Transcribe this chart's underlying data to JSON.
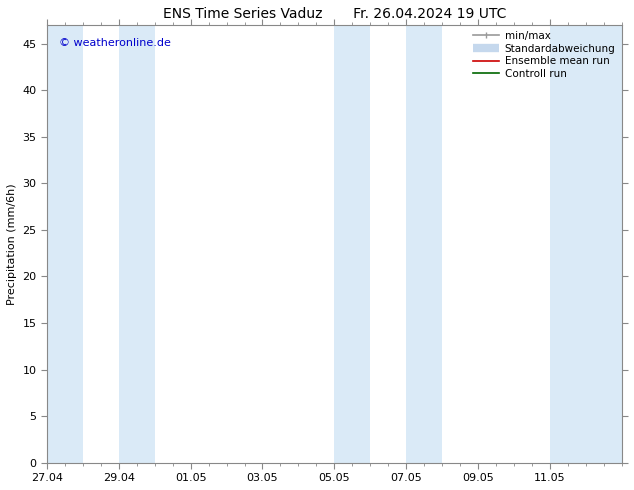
{
  "title": "ENS Time Series Vaduz       Fr. 26.04.2024 19 UTC",
  "ylabel": "Precipitation (mm/6h)",
  "watermark": "© weatheronline.de",
  "watermark_color": "#0000cc",
  "ylim": [
    0,
    47
  ],
  "yticks": [
    0,
    5,
    10,
    15,
    20,
    25,
    30,
    35,
    40,
    45
  ],
  "xtick_labels": [
    "27.04",
    "29.04",
    "01.05",
    "03.05",
    "05.05",
    "07.05",
    "09.05",
    "11.05"
  ],
  "xtick_positions": [
    0,
    2,
    4,
    6,
    8,
    10,
    12,
    14
  ],
  "xlim": [
    0,
    16
  ],
  "background_color": "#ffffff",
  "plot_bg_color": "#ffffff",
  "shaded_regions": [
    [
      0.0,
      1.0
    ],
    [
      2.0,
      3.0
    ],
    [
      8.0,
      9.0
    ],
    [
      10.0,
      11.0
    ],
    [
      14.0,
      16.0
    ]
  ],
  "shaded_color": "#daeaf7",
  "legend_items": [
    {
      "label": "min/max",
      "color": "#999999",
      "linewidth": 1.2
    },
    {
      "label": "Standardabweichung",
      "color": "#c5d8ed",
      "linewidth": 6
    },
    {
      "label": "Ensemble mean run",
      "color": "#cc0000",
      "linewidth": 1.2
    },
    {
      "label": "Controll run",
      "color": "#006600",
      "linewidth": 1.2
    }
  ],
  "title_fontsize": 10,
  "tick_fontsize": 8,
  "ylabel_fontsize": 8,
  "watermark_fontsize": 8,
  "legend_fontsize": 7.5
}
